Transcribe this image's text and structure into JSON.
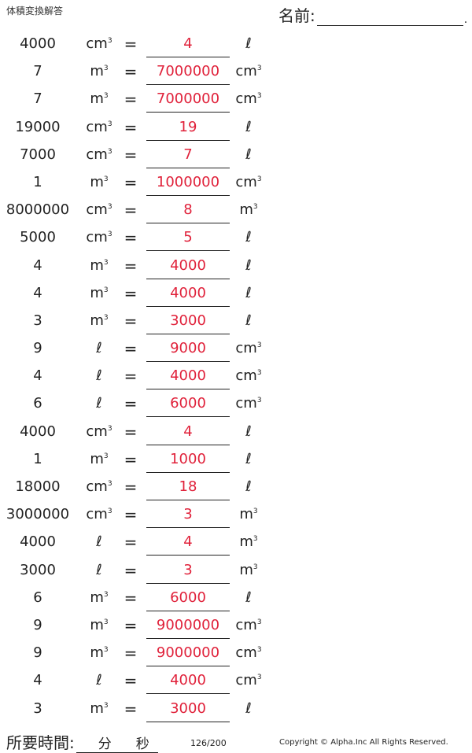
{
  "header": {
    "title": "体積変換解答",
    "name_label": "名前:",
    "name_dot": "."
  },
  "units": {
    "cm3": "cm",
    "m3": "m",
    "l": "ℓ",
    "sup": "3"
  },
  "equals": "=",
  "rows": [
    {
      "value": "4000",
      "from": "cm3",
      "answer": "4",
      "to": "l"
    },
    {
      "value": "7",
      "from": "m3",
      "answer": "7000000",
      "to": "cm3"
    },
    {
      "value": "7",
      "from": "m3",
      "answer": "7000000",
      "to": "cm3"
    },
    {
      "value": "19000",
      "from": "cm3",
      "answer": "19",
      "to": "l"
    },
    {
      "value": "7000",
      "from": "cm3",
      "answer": "7",
      "to": "l"
    },
    {
      "value": "1",
      "from": "m3",
      "answer": "1000000",
      "to": "cm3"
    },
    {
      "value": "8000000",
      "from": "cm3",
      "answer": "8",
      "to": "m3"
    },
    {
      "value": "5000",
      "from": "cm3",
      "answer": "5",
      "to": "l"
    },
    {
      "value": "4",
      "from": "m3",
      "answer": "4000",
      "to": "l"
    },
    {
      "value": "4",
      "from": "m3",
      "answer": "4000",
      "to": "l"
    },
    {
      "value": "3",
      "from": "m3",
      "answer": "3000",
      "to": "l"
    },
    {
      "value": "9",
      "from": "l",
      "answer": "9000",
      "to": "cm3"
    },
    {
      "value": "4",
      "from": "l",
      "answer": "4000",
      "to": "cm3"
    },
    {
      "value": "6",
      "from": "l",
      "answer": "6000",
      "to": "cm3"
    },
    {
      "value": "4000",
      "from": "cm3",
      "answer": "4",
      "to": "l"
    },
    {
      "value": "1",
      "from": "m3",
      "answer": "1000",
      "to": "l"
    },
    {
      "value": "18000",
      "from": "cm3",
      "answer": "18",
      "to": "l"
    },
    {
      "value": "3000000",
      "from": "cm3",
      "answer": "3",
      "to": "m3"
    },
    {
      "value": "4000",
      "from": "l",
      "answer": "4",
      "to": "m3"
    },
    {
      "value": "3000",
      "from": "l",
      "answer": "3",
      "to": "m3"
    },
    {
      "value": "6",
      "from": "m3",
      "answer": "6000",
      "to": "l"
    },
    {
      "value": "9",
      "from": "m3",
      "answer": "9000000",
      "to": "cm3"
    },
    {
      "value": "9",
      "from": "m3",
      "answer": "9000000",
      "to": "cm3"
    },
    {
      "value": "4",
      "from": "l",
      "answer": "4000",
      "to": "cm3"
    },
    {
      "value": "3",
      "from": "m3",
      "answer": "3000",
      "to": "l"
    }
  ],
  "footer": {
    "time_label": "所要時間:",
    "minutes_label": "分",
    "seconds_label": "秒",
    "page": "126/200",
    "copyright": "Copyright © Alpha.Inc All Rights Reserved."
  },
  "colors": {
    "answer": "#e0213a",
    "text": "#222222"
  }
}
